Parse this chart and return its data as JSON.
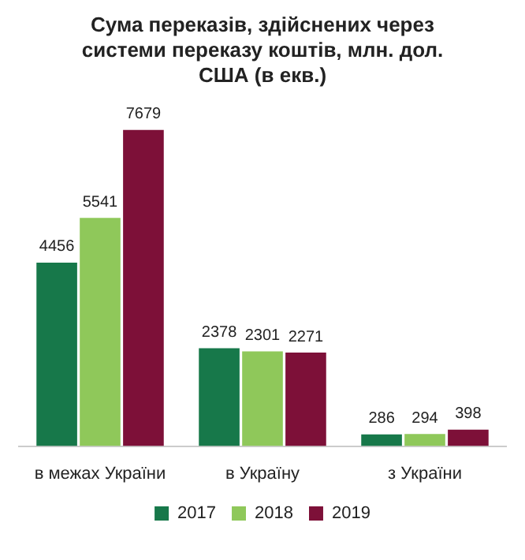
{
  "chart_data": {
    "type": "bar",
    "title": "Сума переказів, здійснених через системи переказу коштів, млн. дол. США (в екв.)",
    "categories": [
      "в межах України",
      "в Україну",
      "з України"
    ],
    "series": [
      {
        "name": "2017",
        "color": "#17784a",
        "values": [
          4456,
          2378,
          286
        ]
      },
      {
        "name": "2018",
        "color": "#8fc85a",
        "values": [
          5541,
          2301,
          294
        ]
      },
      {
        "name": "2019",
        "color": "#7d1038",
        "values": [
          7679,
          2271,
          398
        ]
      }
    ],
    "data_labels": true,
    "legend": "bottom",
    "grid": false
  }
}
